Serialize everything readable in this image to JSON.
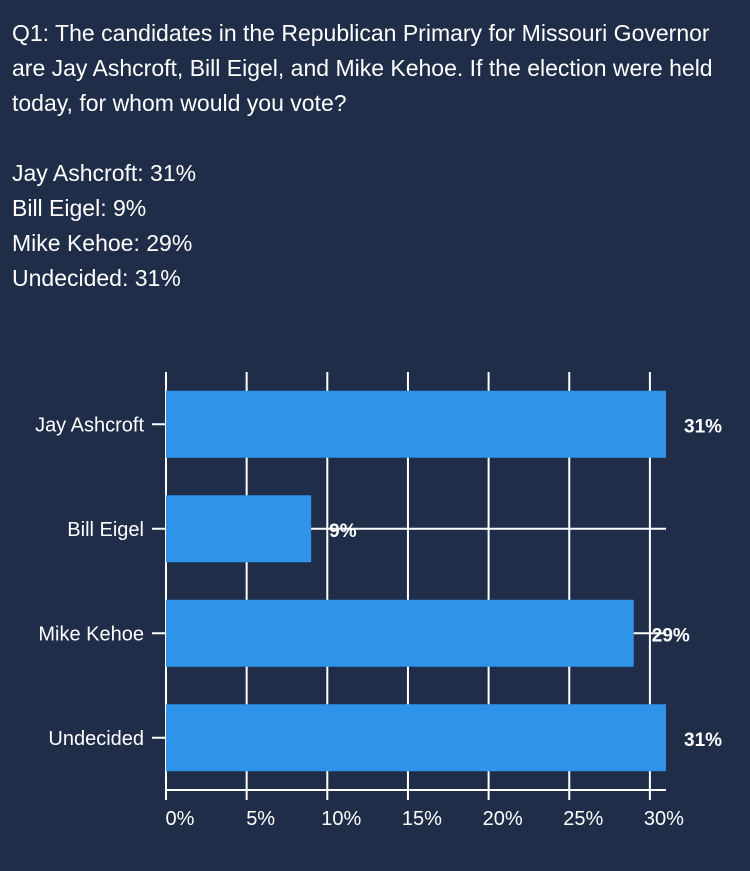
{
  "question": "Q1: The candidates in the Republican Primary for Missouri Governor are Jay Ashcroft, Bill Eigel, and Mike Kehoe. If the election were held today, for whom would you vote?",
  "results": [
    {
      "text": "Jay Ashcroft: 31%"
    },
    {
      "text": "Bill Eigel: 9%"
    },
    {
      "text": "Mike Kehoe: 29%"
    },
    {
      "text": "Undecided: 31%"
    }
  ],
  "colors": {
    "background": "#1f2d48",
    "bar": "#2f93ea",
    "text": "#ffffff",
    "grid": "#ffffff"
  },
  "chart_data": {
    "type": "bar",
    "orientation": "horizontal",
    "categories": [
      "Jay Ashcroft",
      "Bill Eigel",
      "Mike Kehoe",
      "Undecided"
    ],
    "values": [
      31,
      9,
      29,
      31
    ],
    "data_labels": [
      "31%",
      "9%",
      "29%",
      "31%"
    ],
    "xlim": [
      0,
      31
    ],
    "xticks": [
      0,
      5,
      10,
      15,
      20,
      25,
      30
    ],
    "xtick_labels": [
      "0%",
      "5%",
      "10%",
      "15%",
      "20%",
      "25%",
      "30%"
    ],
    "grid": true,
    "title": "",
    "xlabel": "",
    "ylabel": ""
  }
}
